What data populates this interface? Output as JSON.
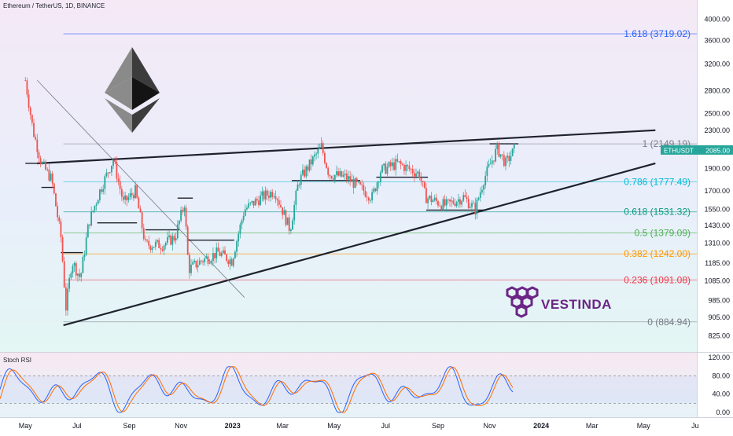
{
  "header": {
    "title": "Ethereum / TetherUS, 1D, BINANCE"
  },
  "brand": {
    "name": "VESTINDA",
    "color": "#6b2585"
  },
  "rsi": {
    "title": "Stoch RSI"
  },
  "colors": {
    "up": "#26a69a",
    "down": "#ef5350",
    "trendline": "#1e222d",
    "rsi_k": "#2962ff",
    "rsi_d": "#ff6d00",
    "price_tag": "#26a69a"
  },
  "chart_data": [
    {
      "type": "candlestick",
      "title": "Ethereum / TetherUS, 1D, BINANCE",
      "symbol": "ETHUSDT",
      "last_price_label": "2085.00",
      "last_price": 2085.0,
      "y_scale": "log",
      "ylim": [
        780,
        4300
      ],
      "x_ticks": [
        "May",
        "Jul",
        "Sep",
        "Nov",
        "2023",
        "Mar",
        "May",
        "Jul",
        "Sep",
        "Nov",
        "2024",
        "Mar",
        "May",
        "Ju"
      ],
      "y_ticks": [
        "4000.00",
        "3600.00",
        "3200.00",
        "2800.00",
        "2500.00",
        "2300.00",
        "2100.00",
        "1900.00",
        "1700.00",
        "1550.00",
        "1430.00",
        "1310.00",
        "1185.00",
        "1085.00",
        "985.00",
        "905.00",
        "825.00"
      ],
      "fib_levels": [
        {
          "ratio": "1.618",
          "price": 3719.02,
          "label": "1.618 (3719.02)",
          "color": "#2962ff"
        },
        {
          "ratio": "1",
          "price": 2149.19,
          "label": "1 (2149.19)",
          "color": "#787b86"
        },
        {
          "ratio": "0.786",
          "price": 1777.49,
          "label": "0.786 (1777.49)",
          "color": "#00bcd4"
        },
        {
          "ratio": "0.618",
          "price": 1531.32,
          "label": "0.618 (1531.32)",
          "color": "#089981"
        },
        {
          "ratio": "0.5",
          "price": 1379.09,
          "label": "0.5 (1379.09)",
          "color": "#4caf50"
        },
        {
          "ratio": "0.382",
          "price": 1242.0,
          "label": "0.382 (1242.00)",
          "color": "#ff9800"
        },
        {
          "ratio": "0.236",
          "price": 1091.08,
          "label": "0.236 (1091.08)",
          "color": "#f23645"
        },
        {
          "ratio": "0",
          "price": 884.94,
          "label": "0 (884.94)",
          "color": "#787b86"
        }
      ],
      "trend_lines": [
        {
          "name": "upper resistance",
          "from": [
            "2022-05",
            1950
          ],
          "to": [
            "2024-05",
            2300
          ]
        },
        {
          "name": "lower support",
          "from": [
            "2022-06",
            870
          ],
          "to": [
            "2024-05",
            1950
          ]
        },
        {
          "name": "descending line",
          "from": [
            "2022-05",
            2950
          ],
          "to": [
            "2023-01",
            1000
          ]
        }
      ],
      "price_path": [
        {
          "date": "2022-05-01",
          "close": 2950
        },
        {
          "date": "2022-05-10",
          "close": 2300
        },
        {
          "date": "2022-05-20",
          "close": 1950
        },
        {
          "date": "2022-06-01",
          "close": 1800
        },
        {
          "date": "2022-06-12",
          "close": 1350
        },
        {
          "date": "2022-06-18",
          "close": 950
        },
        {
          "date": "2022-06-25",
          "close": 1200
        },
        {
          "date": "2022-07-05",
          "close": 1100
        },
        {
          "date": "2022-07-15",
          "close": 1450
        },
        {
          "date": "2022-07-28",
          "close": 1700
        },
        {
          "date": "2022-08-13",
          "close": 1990
        },
        {
          "date": "2022-08-25",
          "close": 1600
        },
        {
          "date": "2022-09-08",
          "close": 1700
        },
        {
          "date": "2022-09-20",
          "close": 1300
        },
        {
          "date": "2022-10-10",
          "close": 1300
        },
        {
          "date": "2022-10-25",
          "close": 1350
        },
        {
          "date": "2022-11-05",
          "close": 1600
        },
        {
          "date": "2022-11-10",
          "close": 1150
        },
        {
          "date": "2022-11-25",
          "close": 1200
        },
        {
          "date": "2022-12-15",
          "close": 1250
        },
        {
          "date": "2022-12-31",
          "close": 1200
        },
        {
          "date": "2023-01-15",
          "close": 1550
        },
        {
          "date": "2023-02-05",
          "close": 1650
        },
        {
          "date": "2023-02-20",
          "close": 1700
        },
        {
          "date": "2023-03-10",
          "close": 1400
        },
        {
          "date": "2023-03-20",
          "close": 1780
        },
        {
          "date": "2023-04-16",
          "close": 2120
        },
        {
          "date": "2023-04-25",
          "close": 1850
        },
        {
          "date": "2023-05-15",
          "close": 1820
        },
        {
          "date": "2023-06-15",
          "close": 1650
        },
        {
          "date": "2023-06-25",
          "close": 1880
        },
        {
          "date": "2023-07-15",
          "close": 1950
        },
        {
          "date": "2023-08-10",
          "close": 1850
        },
        {
          "date": "2023-08-17",
          "close": 1650
        },
        {
          "date": "2023-09-10",
          "close": 1580
        },
        {
          "date": "2023-10-01",
          "close": 1650
        },
        {
          "date": "2023-10-15",
          "close": 1550
        },
        {
          "date": "2023-10-25",
          "close": 1800
        },
        {
          "date": "2023-11-10",
          "close": 2100
        },
        {
          "date": "2023-11-20",
          "close": 1950
        },
        {
          "date": "2023-11-30",
          "close": 2085
        }
      ]
    },
    {
      "type": "line",
      "title": "Stoch RSI",
      "ylim": [
        0,
        120
      ],
      "y_ticks": [
        "120.00",
        "80.00",
        "40.00",
        "0.00"
      ],
      "bands": [
        20,
        80
      ],
      "series": []
    }
  ]
}
